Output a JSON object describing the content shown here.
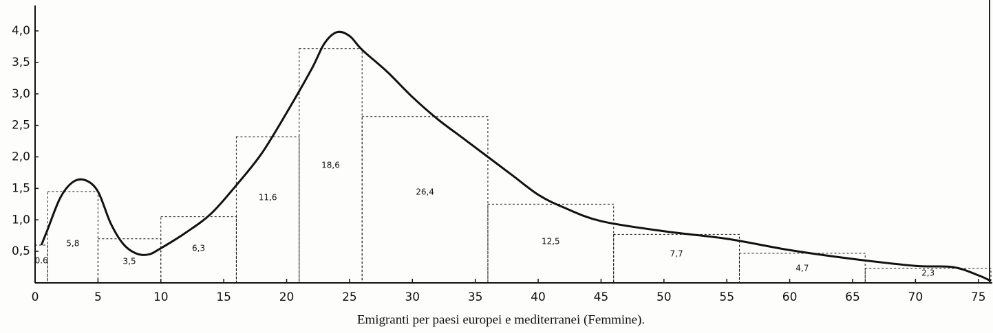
{
  "chart_data": {
    "type": "histogram",
    "caption": "Emigranti per paesi europei e mediterranei (Femmine).",
    "bins": [
      0,
      1,
      5,
      10,
      16,
      21,
      26,
      36,
      46,
      56,
      66,
      76
    ],
    "values": [
      0.6,
      1.45,
      0.7,
      1.05,
      2.32,
      3.72,
      2.64,
      1.25,
      0.77,
      0.47,
      0.23
    ],
    "areas": [
      0.6,
      5.8,
      3.5,
      6.3,
      11.6,
      18.6,
      26.4,
      12.5,
      7.7,
      4.7,
      2.3
    ],
    "area_labels": [
      "0.6",
      "5,8",
      "3,5",
      "6,3",
      "11,6",
      "18,6",
      "26,4",
      "12,5",
      "7,7",
      "4,7",
      "2,3"
    ],
    "curve": {
      "x": [
        0.5,
        1,
        2,
        3,
        4,
        5,
        6,
        7,
        8,
        9,
        10,
        12,
        14,
        16,
        18,
        20,
        22,
        23,
        24,
        25,
        26,
        28,
        30,
        32,
        34,
        36,
        38,
        40,
        42,
        45,
        50,
        55,
        60,
        65,
        70,
        73,
        75,
        76
      ],
      "y": [
        0.6,
        0.85,
        1.35,
        1.6,
        1.63,
        1.45,
        0.95,
        0.62,
        0.47,
        0.45,
        0.55,
        0.8,
        1.1,
        1.55,
        2.05,
        2.7,
        3.4,
        3.8,
        3.98,
        3.92,
        3.7,
        3.35,
        2.95,
        2.6,
        2.3,
        2.0,
        1.7,
        1.4,
        1.2,
        0.98,
        0.82,
        0.7,
        0.52,
        0.38,
        0.27,
        0.25,
        0.12,
        0.03
      ]
    },
    "xlim": [
      0,
      76
    ],
    "ylim": [
      0,
      4.0
    ],
    "xticks": [
      0,
      5,
      10,
      15,
      20,
      25,
      30,
      35,
      40,
      45,
      50,
      55,
      60,
      65,
      70,
      75
    ],
    "yticks": [
      {
        "value": 0.5,
        "label": "0,5"
      },
      {
        "value": 1.0,
        "label": "1,0"
      },
      {
        "value": 1.5,
        "label": "1,5"
      },
      {
        "value": 2.0,
        "label": "2,0"
      },
      {
        "value": 2.5,
        "label": "2,5"
      },
      {
        "value": 3.0,
        "label": "3,0"
      },
      {
        "value": 3.5,
        "label": "3,5"
      },
      {
        "value": 4.0,
        "label": "4,0"
      }
    ],
    "color": "#111111"
  }
}
